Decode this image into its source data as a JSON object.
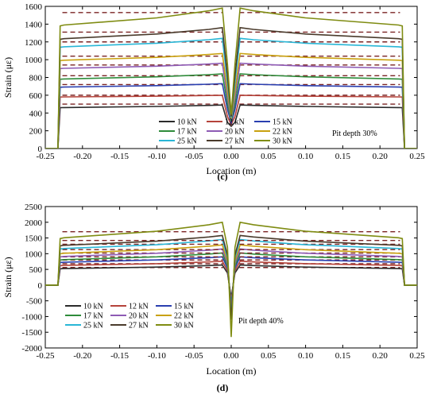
{
  "chart_data": [
    {
      "type": "line",
      "panel_label": "(c)",
      "xlabel": "Location (m)",
      "ylabel": "Strain (με)",
      "xlim": [
        -0.25,
        0.25
      ],
      "ylim": [
        0,
        1600
      ],
      "xticks": [
        "-0.25",
        "-0.20",
        "-0.15",
        "-0.10",
        "-0.05",
        "0.00",
        "0.05",
        "0.10",
        "0.15",
        "0.20",
        "0.25"
      ],
      "yticks": [
        "0",
        "200",
        "400",
        "600",
        "800",
        "1000",
        "1200",
        "1400",
        "1600"
      ],
      "annotation": "Pit depth 30%",
      "legend_position": "bottom-left",
      "series": [
        {
          "name": "10 kN",
          "color": "#2b2b2b",
          "edge": 460,
          "center": 490,
          "dip": 250,
          "ref": 500
        },
        {
          "name": "12 kN",
          "color": "#b5433a",
          "edge": 580,
          "center": 600,
          "dip": 270,
          "ref": 600
        },
        {
          "name": "15 kN",
          "color": "#2a3fb0",
          "edge": 690,
          "center": 730,
          "dip": 290,
          "ref": 720
        },
        {
          "name": "17 kN",
          "color": "#2e8b3a",
          "edge": 780,
          "center": 840,
          "dip": 310,
          "ref": 820
        },
        {
          "name": "20 kN",
          "color": "#8e5bb5",
          "edge": 900,
          "center": 960,
          "dip": 330,
          "ref": 940
        },
        {
          "name": "22 kN",
          "color": "#c9a10f",
          "edge": 990,
          "center": 1070,
          "dip": 340,
          "ref": 1040
        },
        {
          "name": "25 kN",
          "color": "#29b6d6",
          "edge": 1140,
          "center": 1240,
          "dip": 350,
          "ref": 1200
        },
        {
          "name": "27 kN",
          "color": "#4a3b2c",
          "edge": 1230,
          "center": 1360,
          "dip": 360,
          "ref": 1310
        },
        {
          "name": "30 kN",
          "color": "#7f8c12",
          "edge": 1380,
          "center": 1580,
          "dip": 380,
          "ref": 1530
        }
      ],
      "ref_color": "#7a2323"
    },
    {
      "type": "line",
      "panel_label": "(d)",
      "xlabel": "Location (m)",
      "ylabel": "Strain (με)",
      "xlim": [
        -0.25,
        0.25
      ],
      "ylim": [
        -2000,
        2500
      ],
      "xticks": [
        "-0.25",
        "-0.20",
        "-0.15",
        "-0.10",
        "-0.05",
        "0.00",
        "0.05",
        "0.10",
        "0.15",
        "0.20",
        "0.25"
      ],
      "yticks": [
        "-2000",
        "-1500",
        "-1000",
        "-500",
        "0",
        "500",
        "1000",
        "1500",
        "2000",
        "2500"
      ],
      "annotation": "Pit depth 40%",
      "legend_position": "bottom-left",
      "series": [
        {
          "name": "10 kN",
          "color": "#2b2b2b",
          "edge": 520,
          "center": 640,
          "dip": -400,
          "ref": 560
        },
        {
          "name": "12 kN",
          "color": "#b5433a",
          "edge": 620,
          "center": 760,
          "dip": -500,
          "ref": 680
        },
        {
          "name": "15 kN",
          "color": "#2a3fb0",
          "edge": 720,
          "center": 900,
          "dip": -600,
          "ref": 800
        },
        {
          "name": "17 kN",
          "color": "#2e8b3a",
          "edge": 800,
          "center": 1020,
          "dip": -700,
          "ref": 900
        },
        {
          "name": "20 kN",
          "color": "#8e5bb5",
          "edge": 900,
          "center": 1150,
          "dip": -800,
          "ref": 1020
        },
        {
          "name": "22 kN",
          "color": "#c9a10f",
          "edge": 1000,
          "center": 1280,
          "dip": -900,
          "ref": 1130
        },
        {
          "name": "25 kN",
          "color": "#29b6d6",
          "edge": 1150,
          "center": 1450,
          "dip": -1000,
          "ref": 1300
        },
        {
          "name": "27 kN",
          "color": "#4a3b2c",
          "edge": 1250,
          "center": 1580,
          "dip": -1100,
          "ref": 1420
        },
        {
          "name": "30 kN",
          "color": "#7f8c12",
          "edge": 1480,
          "center": 2000,
          "dip": -1650,
          "ref": 1700
        }
      ],
      "ref_color": "#7a2323"
    }
  ]
}
